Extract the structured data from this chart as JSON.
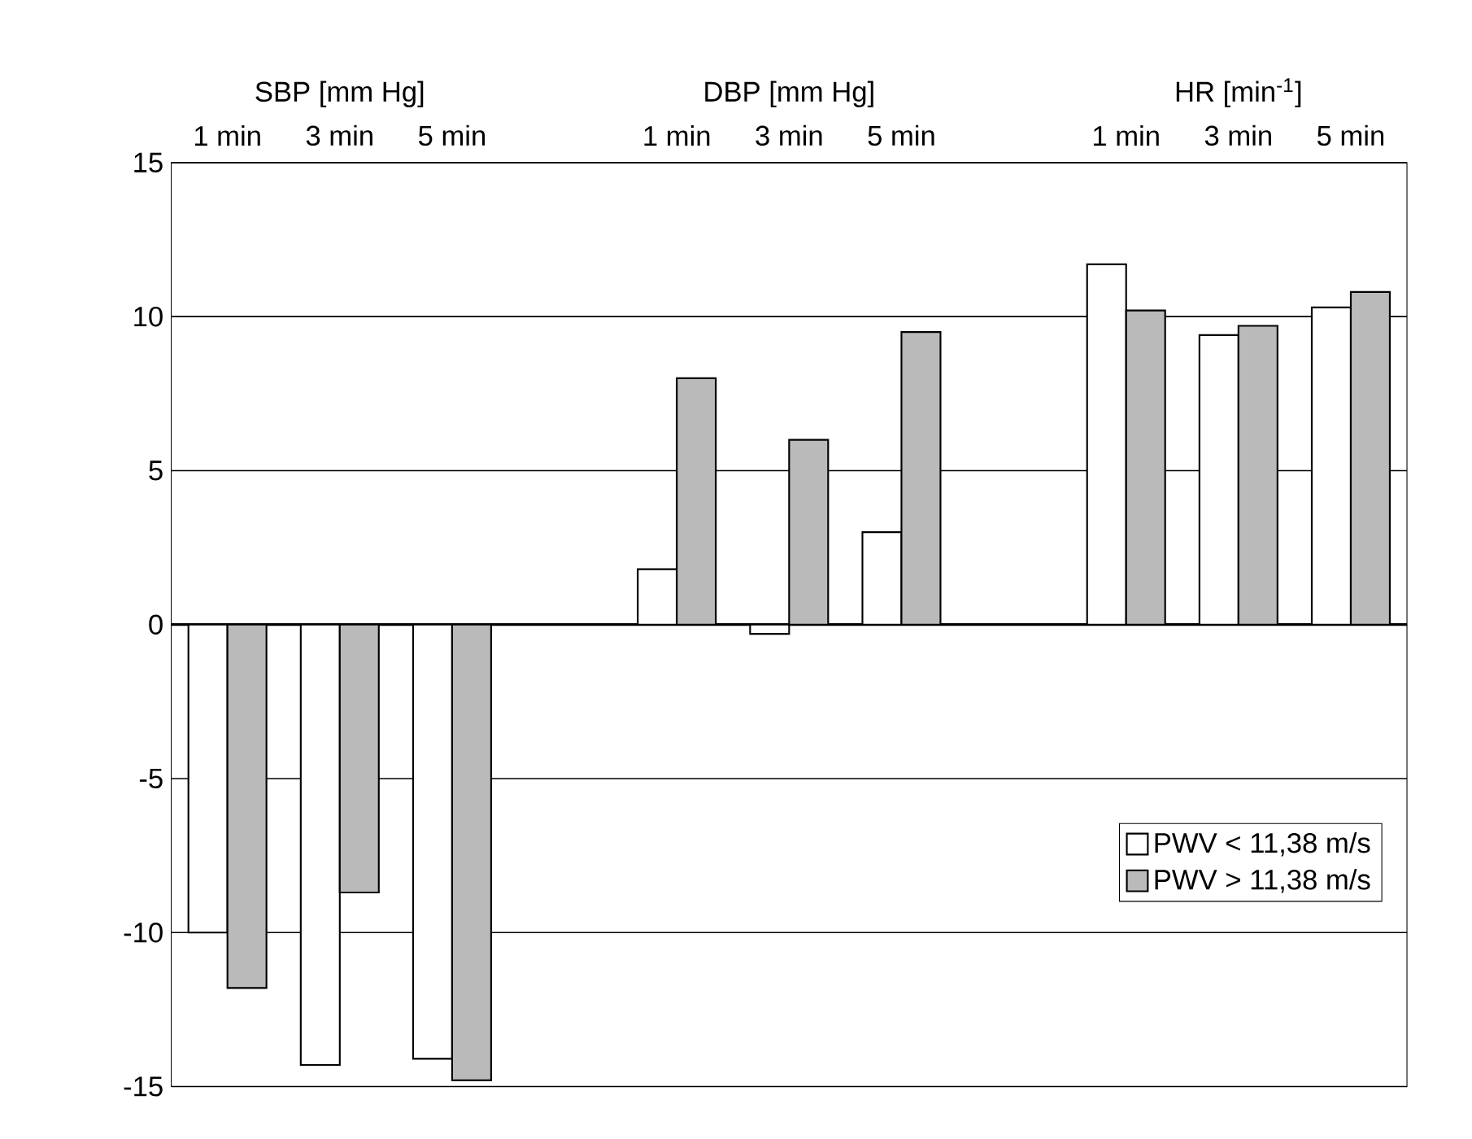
{
  "chart_data": {
    "type": "bar",
    "categories": [
      "1 min",
      "3 min",
      "5 min",
      null,
      "1 min",
      "3 min",
      "5 min",
      null,
      "1 min",
      "3 min",
      "5 min"
    ],
    "series": [
      {
        "name": "PWV < 11,38 m/s",
        "color": "#ffffff",
        "values": [
          -10.0,
          -14.3,
          -14.1,
          null,
          1.8,
          -0.3,
          3.0,
          null,
          11.7,
          9.4,
          10.3
        ]
      },
      {
        "name": "PWV > 11,38 m/s",
        "color": "#bababa",
        "values": [
          -11.8,
          -8.7,
          -14.8,
          null,
          8.0,
          6.0,
          9.5,
          null,
          10.2,
          9.7,
          10.8
        ]
      }
    ],
    "annotations": [
      "SBP [mm Hg]",
      "DBP [mm Hg]",
      "HR [min$^{-1}$]"
    ],
    "ylim": [
      -15,
      15
    ],
    "yticks": [
      -15,
      -10,
      -5,
      0,
      5,
      10,
      15
    ],
    "grid": "y",
    "legend": "bottom right"
  }
}
